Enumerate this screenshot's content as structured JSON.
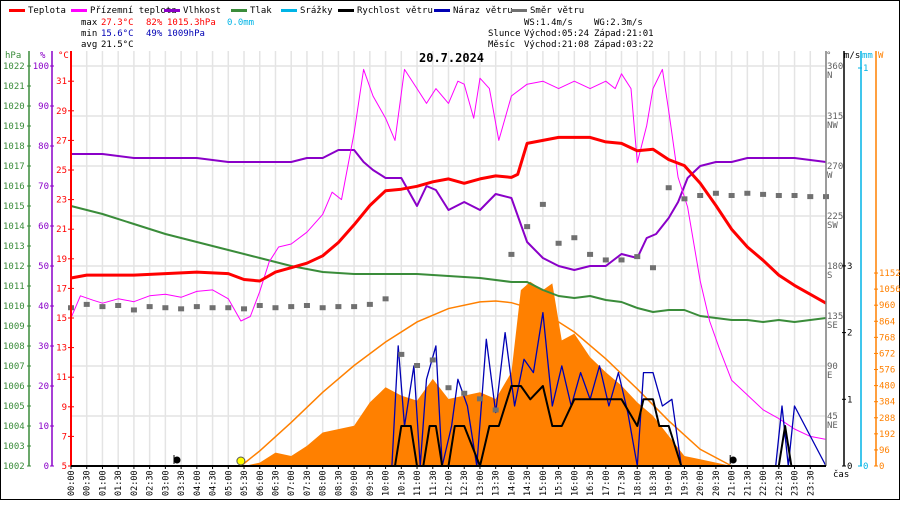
{
  "legend": [
    {
      "label": "Teplota",
      "color": "#ff0000"
    },
    {
      "label": "Přízemní teplota",
      "color": "#ff00ff"
    },
    {
      "label": "Vlhkost",
      "color": "#8a00c8"
    },
    {
      "label": "Tlak",
      "color": "#3a8c3a"
    },
    {
      "label": "Srážky",
      "color": "#00b4e6"
    },
    {
      "label": "Rychlost větru",
      "color": "#000000"
    },
    {
      "label": "Náraz větru",
      "color": "#0000b4"
    },
    {
      "label": "Směr větru",
      "color": "#707070"
    }
  ],
  "stats": {
    "max_label": "max",
    "min_label": "min",
    "avg_label": "avg",
    "max_temp": "27.3°C",
    "max_hum": "82%",
    "max_press": "1015.3hPa",
    "rain": "0.0mm",
    "min_temp": "15.6°C",
    "min_hum": "49%",
    "min_press": "1009hPa",
    "avg_temp": "21.5°C",
    "ws": "WS:1.4m/s",
    "wg": "WG:2.3m/s",
    "sun_label": "Slunce",
    "sun_rise": "Východ:05:24",
    "sun_set": "Západ:21:01",
    "moon_label": "Měsíc",
    "moon_rise": "Východ:21:08",
    "moon_set": "Západ:03:22"
  },
  "colors": {
    "temp": "#ff0000",
    "ground": "#ff00ff",
    "hum": "#8a00c8",
    "press": "#3a8c3a",
    "rain": "#00b4e6",
    "wind": "#000000",
    "gust": "#0000b4",
    "dir": "#707070",
    "solar": "#ff8000",
    "grid": "#e4e4e4"
  },
  "chart_data": {
    "type": "line",
    "title": "20.7.2024",
    "xlabel": "čas",
    "x_ticks": [
      "00:00",
      "00:30",
      "01:00",
      "01:30",
      "02:00",
      "02:30",
      "03:00",
      "03:30",
      "04:00",
      "04:30",
      "05:00",
      "05:30",
      "06:00",
      "06:30",
      "07:00",
      "07:30",
      "08:00",
      "08:30",
      "09:00",
      "09:30",
      "10:00",
      "10:30",
      "11:00",
      "11:30",
      "12:00",
      "12:30",
      "13:00",
      "13:30",
      "14:00",
      "14:30",
      "15:00",
      "15:30",
      "16:00",
      "16:30",
      "17:00",
      "17:30",
      "18:00",
      "18:30",
      "19:00",
      "19:30",
      "20:00",
      "20:30",
      "21:00",
      "21:30",
      "22:00",
      "22:30",
      "23:00",
      "23:30"
    ],
    "axes": {
      "pressure": {
        "unit": "hPa",
        "range": [
          1002,
          1022
        ],
        "ticks": [
          1002,
          1003,
          1004,
          1005,
          1006,
          1007,
          1008,
          1009,
          1010,
          1011,
          1012,
          1013,
          1014,
          1015,
          1016,
          1017,
          1018,
          1019,
          1020,
          1021,
          1022
        ]
      },
      "humidity": {
        "unit": "%",
        "range": [
          0,
          100
        ],
        "ticks": [
          0,
          10,
          20,
          30,
          40,
          50,
          60,
          70,
          80,
          90,
          100
        ]
      },
      "temperature": {
        "unit": "°C",
        "range": [
          5,
          32
        ],
        "ticks": [
          5,
          7,
          9,
          11,
          13,
          15,
          17,
          19,
          21,
          23,
          25,
          27,
          29,
          31
        ]
      },
      "direction": {
        "unit": "°",
        "range": [
          0,
          360
        ],
        "ticks": [
          {
            "v": 45,
            "l": "45",
            "d": "NE"
          },
          {
            "v": 90,
            "l": "90",
            "d": "E"
          },
          {
            "v": 135,
            "l": "135",
            "d": "SE"
          },
          {
            "v": 180,
            "l": "180",
            "d": "S"
          },
          {
            "v": 225,
            "l": "225",
            "d": "SW"
          },
          {
            "v": 270,
            "l": "270",
            "d": "W"
          },
          {
            "v": 315,
            "l": "315",
            "d": "NW"
          },
          {
            "v": 360,
            "l": "360",
            "d": "N"
          }
        ]
      },
      "wind": {
        "unit": "m/s",
        "range": [
          0,
          3
        ],
        "ticks": [
          0,
          1,
          2,
          3
        ]
      },
      "rain": {
        "unit": "mm",
        "range": [
          0,
          1
        ],
        "ticks": [
          0,
          1
        ]
      },
      "solar": {
        "unit": "W",
        "range": [
          0,
          1200
        ],
        "ticks": [
          0,
          96,
          192,
          288,
          384,
          480,
          576,
          672,
          768,
          864,
          960,
          1056,
          1152
        ]
      }
    },
    "series": [
      {
        "name": "Teplota",
        "axis": "temperature",
        "x_hours": [
          0,
          0.5,
          1,
          2,
          3,
          4,
          5,
          5.5,
          6,
          6.5,
          7,
          7.5,
          8,
          8.5,
          9,
          9.5,
          10,
          10.5,
          11,
          11.5,
          12,
          12.5,
          13,
          13.5,
          14,
          14.2,
          14.5,
          15,
          15.5,
          16,
          16.5,
          17,
          17.5,
          18,
          18.5,
          19,
          19.5,
          20,
          20.5,
          21,
          21.5,
          22,
          22.5,
          23,
          23.5,
          24
        ],
        "values": [
          17.7,
          17.9,
          17.9,
          17.9,
          18.0,
          18.1,
          18.0,
          17.6,
          17.5,
          18.1,
          18.4,
          18.7,
          19.2,
          20.1,
          21.3,
          22.6,
          23.6,
          23.7,
          23.9,
          24.2,
          24.4,
          24.1,
          24.4,
          24.6,
          24.5,
          24.7,
          26.8,
          27.0,
          27.2,
          27.2,
          27.2,
          26.9,
          26.8,
          26.3,
          26.4,
          25.7,
          25.3,
          24.1,
          22.6,
          21.0,
          19.8,
          18.9,
          17.9,
          17.2,
          16.6,
          16.0
        ]
      },
      {
        "name": "Přízemní teplota",
        "axis": "temperature",
        "x_hours": [
          0,
          0.3,
          0.7,
          1,
          1.5,
          2,
          2.5,
          3,
          3.5,
          4,
          4.5,
          5,
          5.4,
          5.7,
          6,
          6.3,
          6.6,
          7,
          7.5,
          8,
          8.3,
          8.6,
          9,
          9.3,
          9.6,
          10,
          10.3,
          10.6,
          11,
          11.3,
          11.6,
          12,
          12.3,
          12.5,
          12.8,
          13,
          13.3,
          13.6,
          14,
          14.5,
          15,
          15.5,
          16,
          16.5,
          17,
          17.3,
          17.5,
          17.8,
          18,
          18.3,
          18.5,
          18.8,
          19,
          19.3,
          19.6,
          20,
          20.3,
          20.6,
          21,
          21.5,
          22,
          22.5,
          23,
          23.5,
          24
        ],
        "values": [
          15,
          16.5,
          16.2,
          16.0,
          16.3,
          16.1,
          16.5,
          16.6,
          16.4,
          16.8,
          16.9,
          16.3,
          14.8,
          15.1,
          16.8,
          18.8,
          19.8,
          20.0,
          20.8,
          22.0,
          23.5,
          23.0,
          27.5,
          31.8,
          30,
          28.5,
          27,
          31.8,
          30.5,
          29.5,
          30.5,
          29.5,
          31.0,
          30.8,
          28.5,
          31.2,
          30.5,
          27,
          30,
          30.8,
          31,
          30.5,
          31,
          30.5,
          31,
          30.5,
          31.5,
          30.5,
          25.5,
          28,
          30.5,
          31.8,
          29,
          24.5,
          22.5,
          17.5,
          14.8,
          13,
          10.8,
          9.8,
          8.8,
          8.2,
          7.5,
          7.0,
          6.8
        ]
      },
      {
        "name": "Vlhkost",
        "axis": "humidity",
        "x_hours": [
          0,
          1,
          2,
          3,
          4,
          5,
          6,
          7,
          7.5,
          8,
          8.5,
          9,
          9.3,
          9.6,
          10,
          10.5,
          11,
          11.3,
          11.6,
          12,
          12.5,
          13,
          13.5,
          14,
          14.5,
          15,
          15.5,
          16,
          16.5,
          17,
          17.5,
          18,
          18.3,
          18.6,
          19,
          19.3,
          19.6,
          20,
          20.5,
          21,
          21.5,
          22,
          22.5,
          23,
          24
        ],
        "values": [
          78,
          78,
          77,
          77,
          77,
          76,
          76,
          76,
          77,
          77,
          79,
          79,
          76,
          74,
          72,
          72,
          65,
          70,
          69,
          64,
          66,
          64,
          68,
          67,
          56,
          52,
          50,
          49,
          50,
          50,
          53,
          52,
          57,
          58,
          62,
          66,
          72,
          75,
          76,
          76,
          77,
          77,
          77,
          77,
          76
        ]
      },
      {
        "name": "Tlak",
        "axis": "pressure",
        "x_hours": [
          0,
          1,
          2,
          3,
          4,
          5,
          6,
          7,
          8,
          9,
          10,
          11,
          12,
          13,
          14,
          14.5,
          15,
          15.5,
          16,
          16.5,
          17,
          17.5,
          18,
          18.5,
          19,
          19.5,
          20,
          20.5,
          21,
          21.5,
          22,
          22.5,
          23,
          23.5,
          24
        ],
        "values": [
          1015.0,
          1014.6,
          1014.1,
          1013.6,
          1013.2,
          1012.8,
          1012.4,
          1012.0,
          1011.7,
          1011.6,
          1011.6,
          1011.6,
          1011.5,
          1011.4,
          1011.2,
          1011.2,
          1010.8,
          1010.5,
          1010.4,
          1010.5,
          1010.3,
          1010.2,
          1009.9,
          1009.7,
          1009.8,
          1009.8,
          1009.5,
          1009.4,
          1009.3,
          1009.3,
          1009.2,
          1009.3,
          1009.2,
          1009.3,
          1009.4
        ]
      },
      {
        "name": "Srážky",
        "axis": "rain",
        "x_hours": [
          0,
          24
        ],
        "values": [
          0,
          0
        ]
      },
      {
        "name": "Rychlost větru",
        "axis": "wind",
        "x_hours": [
          0,
          10.3,
          10.5,
          10.8,
          11.0,
          11.2,
          11.4,
          11.6,
          11.8,
          12.0,
          12.2,
          12.5,
          13.0,
          13.3,
          13.6,
          14.0,
          14.3,
          14.6,
          15.0,
          15.3,
          15.6,
          16.0,
          16.5,
          17.0,
          17.5,
          18.0,
          18.2,
          18.5,
          18.7,
          19.0,
          19.4,
          19.6,
          22.5,
          22.7,
          22.9,
          23.1,
          24
        ],
        "values": [
          0,
          0,
          0.6,
          0.6,
          0,
          0,
          0.6,
          0.6,
          0,
          0,
          0.6,
          0.6,
          0,
          0.6,
          0.6,
          1.2,
          1.2,
          1.0,
          1.2,
          0.6,
          0.6,
          1.0,
          1.0,
          1.0,
          1.0,
          0.6,
          1.0,
          1.0,
          0.6,
          0.6,
          0,
          0,
          0,
          0.6,
          0,
          0,
          0
        ]
      },
      {
        "name": "Náraz větru",
        "axis": "wind",
        "x_hours": [
          0,
          10.2,
          10.4,
          10.6,
          10.9,
          11.1,
          11.3,
          11.6,
          11.8,
          12.1,
          12.3,
          12.6,
          12.9,
          13.2,
          13.5,
          13.8,
          14.1,
          14.4,
          14.7,
          15.0,
          15.3,
          15.6,
          15.9,
          16.2,
          16.5,
          16.8,
          17.1,
          17.4,
          17.7,
          18.0,
          18.2,
          18.5,
          18.8,
          19.1,
          19.4,
          22.4,
          22.6,
          22.8,
          23.0,
          24
        ],
        "values": [
          0,
          0,
          1.8,
          0.6,
          1.5,
          0,
          1.3,
          1.8,
          0,
          0.6,
          1.3,
          0.9,
          0,
          1.9,
          0.8,
          2.0,
          0.9,
          1.6,
          1.4,
          2.3,
          0.9,
          1.5,
          0.9,
          1.4,
          1.0,
          1.5,
          0.9,
          1.4,
          0.8,
          0,
          1.4,
          1.4,
          0.9,
          1.0,
          0,
          0,
          0.9,
          0,
          0.9,
          0
        ]
      },
      {
        "name": "Směr větru",
        "axis": "direction",
        "type": "scatter",
        "x_hours": [
          0,
          0.5,
          1,
          1.5,
          2,
          2.5,
          3,
          3.5,
          4,
          4.5,
          5,
          5.5,
          6,
          6.5,
          7,
          7.5,
          8,
          8.5,
          9,
          9.5,
          10,
          10.5,
          11,
          11.5,
          12,
          12.5,
          13,
          13.5,
          14,
          14.5,
          15,
          15.5,
          16,
          16.5,
          17,
          17.5,
          18,
          18.5,
          19,
          19.5,
          20,
          20.5,
          21,
          21.5,
          22,
          22.5,
          23,
          23.5,
          24
        ],
        "values": [
          142,
          145,
          143,
          144,
          140,
          143,
          142,
          141,
          143,
          142,
          142,
          141,
          144,
          142,
          143,
          144,
          142,
          143,
          143,
          145,
          150,
          100,
          90,
          95,
          70,
          65,
          60,
          50,
          190,
          215,
          235,
          200,
          205,
          190,
          185,
          185,
          188,
          178,
          250,
          240,
          243,
          245,
          243,
          245,
          244,
          243,
          243,
          242,
          242
        ]
      },
      {
        "name": "Solar",
        "axis": "solar",
        "type": "area",
        "x_hours": [
          5.5,
          6,
          6.5,
          7,
          7.5,
          8,
          8.5,
          9,
          9.5,
          10,
          10.5,
          11,
          11.5,
          12,
          12.5,
          13,
          13.5,
          14,
          14.3,
          14.6,
          15,
          15.3,
          15.6,
          16,
          16.5,
          17,
          17.5,
          18,
          18.5,
          19,
          19.5,
          20,
          20.5,
          21
        ],
        "values": [
          0,
          20,
          80,
          60,
          120,
          200,
          220,
          240,
          380,
          470,
          420,
          390,
          520,
          400,
          420,
          440,
          400,
          560,
          1050,
          1100,
          1050,
          1090,
          750,
          790,
          650,
          560,
          480,
          380,
          300,
          180,
          60,
          40,
          20,
          0
        ]
      },
      {
        "name": "Solar theoretical",
        "axis": "solar",
        "type": "line",
        "x_hours": [
          5.4,
          6,
          7,
          8,
          9,
          10,
          11,
          12,
          13,
          13.5,
          14,
          15,
          16,
          17,
          18,
          19,
          20,
          21
        ],
        "values": [
          0,
          90,
          260,
          440,
          600,
          740,
          860,
          940,
          980,
          985,
          975,
          920,
          800,
          640,
          460,
          270,
          100,
          0
        ]
      }
    ],
    "markers": [
      {
        "label": "moon-set",
        "x_hours": 3.37
      },
      {
        "label": "sun-rise",
        "x_hours": 5.4
      },
      {
        "label": "sun-set-moon-rise",
        "x_hours": 21.05
      }
    ]
  }
}
